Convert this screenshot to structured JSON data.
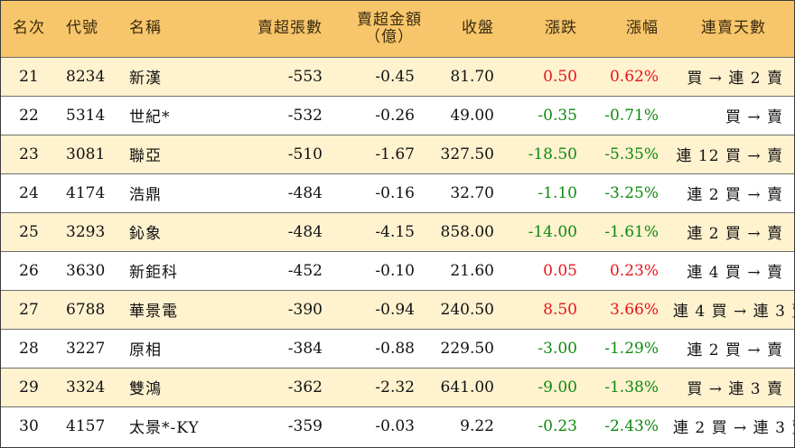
{
  "headers": {
    "rank": "名次",
    "code": "代號",
    "name": "名稱",
    "oversold_shares": "賣超張數",
    "oversold_amount_line1": "賣超金額",
    "oversold_amount_line2": "（億）",
    "close": "收盤",
    "change": "漲跌",
    "change_pct": "漲幅",
    "streak": "連賣天數"
  },
  "colors": {
    "header_bg": "#f7c66a",
    "stripe_bg": "#fff2cf",
    "up": "#e8131b",
    "down": "#0f8a0f"
  },
  "rows": [
    {
      "rank": "21",
      "code": "8234",
      "name": "新漢",
      "shares": "-553",
      "amount": "-0.45",
      "close": "81.70",
      "change": "0.50",
      "pct": "0.62%",
      "dir": "up",
      "streak": "買 → 連 2 賣"
    },
    {
      "rank": "22",
      "code": "5314",
      "name": "世紀*",
      "shares": "-532",
      "amount": "-0.26",
      "close": "49.00",
      "change": "-0.35",
      "pct": "-0.71%",
      "dir": "down",
      "streak": "買 → 賣"
    },
    {
      "rank": "23",
      "code": "3081",
      "name": "聯亞",
      "shares": "-510",
      "amount": "-1.67",
      "close": "327.50",
      "change": "-18.50",
      "pct": "-5.35%",
      "dir": "down",
      "streak": "連 12 買 → 賣"
    },
    {
      "rank": "24",
      "code": "4174",
      "name": "浩鼎",
      "shares": "-484",
      "amount": "-0.16",
      "close": "32.70",
      "change": "-1.10",
      "pct": "-3.25%",
      "dir": "down",
      "streak": "連 2 買 → 賣"
    },
    {
      "rank": "25",
      "code": "3293",
      "name": "鈊象",
      "shares": "-484",
      "amount": "-4.15",
      "close": "858.00",
      "change": "-14.00",
      "pct": "-1.61%",
      "dir": "down",
      "streak": "連 2 買 → 賣"
    },
    {
      "rank": "26",
      "code": "3630",
      "name": "新鉅科",
      "shares": "-452",
      "amount": "-0.10",
      "close": "21.60",
      "change": "0.05",
      "pct": "0.23%",
      "dir": "up",
      "streak": "連 4 買 → 賣"
    },
    {
      "rank": "27",
      "code": "6788",
      "name": "華景電",
      "shares": "-390",
      "amount": "-0.94",
      "close": "240.50",
      "change": "8.50",
      "pct": "3.66%",
      "dir": "up",
      "streak": "連 4 買 → 連 3 賣"
    },
    {
      "rank": "28",
      "code": "3227",
      "name": "原相",
      "shares": "-384",
      "amount": "-0.88",
      "close": "229.50",
      "change": "-3.00",
      "pct": "-1.29%",
      "dir": "down",
      "streak": "連 2 買 → 賣"
    },
    {
      "rank": "29",
      "code": "3324",
      "name": "雙鴻",
      "shares": "-362",
      "amount": "-2.32",
      "close": "641.00",
      "change": "-9.00",
      "pct": "-1.38%",
      "dir": "down",
      "streak": "買 → 連 3 賣"
    },
    {
      "rank": "30",
      "code": "4157",
      "name": "太景*-KY",
      "shares": "-359",
      "amount": "-0.03",
      "close": "9.22",
      "change": "-0.23",
      "pct": "-2.43%",
      "dir": "down",
      "streak": "連 2 買 → 連 3 賣"
    }
  ]
}
